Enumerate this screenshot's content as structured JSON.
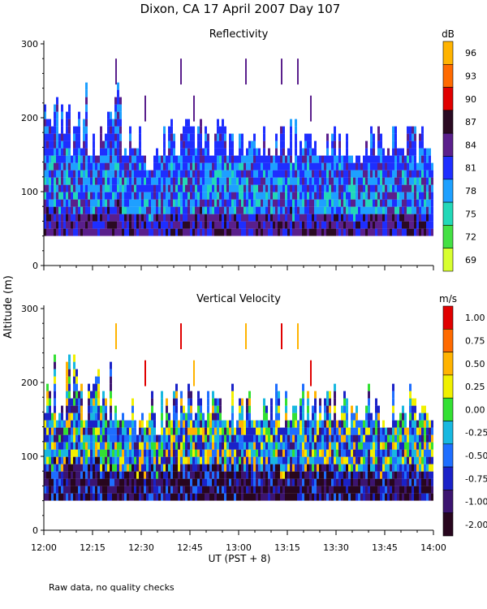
{
  "figure_title": "Dixon, CA 17 April 2007  Day 107",
  "footnote": "Raw data, no quality checks",
  "shared_ylabel": "Altitude (m)",
  "shared_xlabel": "UT  (PST + 8)",
  "chart_data": [
    {
      "type": "heatmap",
      "title": "Reflectivity",
      "xlabel": "UT  (PST + 8)",
      "ylabel": "Altitude (m)",
      "x_ticks": [
        "12:00",
        "12:15",
        "12:30",
        "12:45",
        "13:00",
        "13:15",
        "13:30",
        "13:45",
        "14:00"
      ],
      "x_range_minutes": [
        0,
        120
      ],
      "ylim": [
        0,
        300
      ],
      "y_ticks": [
        0,
        100,
        200,
        300
      ],
      "colorbar_units": "dB",
      "colorbar_labels": [
        "96",
        "93",
        "90",
        "87",
        "84",
        "81",
        "78",
        "75",
        "72",
        "69"
      ],
      "colorbar_colors": [
        "#ffb300",
        "#ff6a00",
        "#e00000",
        "#2a0a22",
        "#5a1f8c",
        "#1e2eff",
        "#1ea0ff",
        "#22d8b8",
        "#44e044",
        "#d8ff30"
      ],
      "data_floor_m": 40,
      "typical_top_m": [
        140,
        200
      ],
      "scattered_echo_max_m": 280,
      "description_values": {
        "dominant_dB_range": [
          78,
          84
        ]
      }
    },
    {
      "type": "heatmap",
      "title": "Vertical Velocity",
      "xlabel": "UT  (PST + 8)",
      "ylabel": "Altitude (m)",
      "x_ticks": [
        "12:00",
        "12:15",
        "12:30",
        "12:45",
        "13:00",
        "13:15",
        "13:30",
        "13:45",
        "14:00"
      ],
      "x_range_minutes": [
        0,
        120
      ],
      "ylim": [
        0,
        300
      ],
      "y_ticks": [
        0,
        100,
        200,
        300
      ],
      "colorbar_units": "m/s",
      "colorbar_labels": [
        "1.00",
        "0.75",
        "0.50",
        "0.25",
        "0.00",
        "-0.25",
        "-0.50",
        "-0.75",
        "-1.00",
        "-2.00"
      ],
      "colorbar_colors": [
        "#e00000",
        "#ff6a00",
        "#ffb300",
        "#f0f000",
        "#33e033",
        "#18b8e0",
        "#1e6eff",
        "#1a22c8",
        "#3c1470",
        "#28061e"
      ],
      "data_floor_m": 40,
      "typical_top_m": [
        140,
        200
      ],
      "scattered_echo_max_m": 280
    }
  ]
}
